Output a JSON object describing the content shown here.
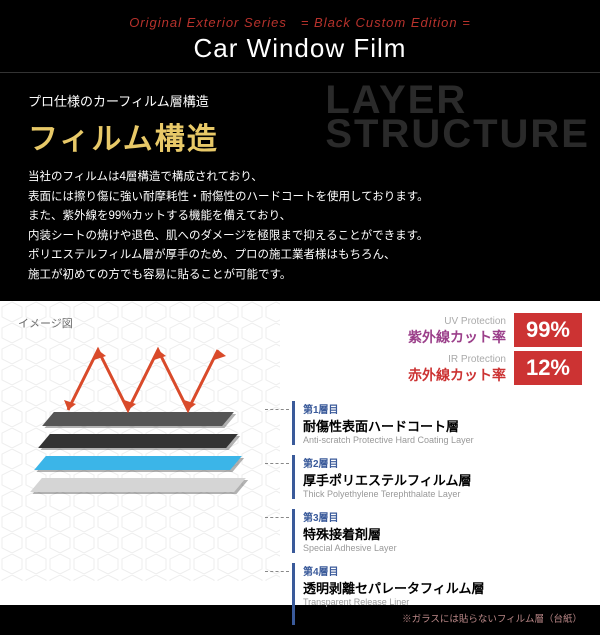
{
  "header": {
    "top": "Original Exterior Series　= Black Custom Edition =",
    "main": "Car Window Film"
  },
  "dark": {
    "subtitle": "プロ仕様のカーフィルム層構造",
    "title": "フィルム構造",
    "bg1": "LAYER",
    "bg2": "STRUCTURE",
    "desc": "当社のフィルムは4層構造で構成されており、\n表面には擦り傷に強い耐摩耗性・耐傷性のハードコートを使用しております。\nまた、紫外線を99%カットする機能を備えており、\n内装シートの焼けや退色、肌へのダメージを極限まで抑えることができます。\nポリエステルフィルム層が厚手のため、プロの施工業者様はもちろん、\n施工が初めての方でも容易に貼ることが可能です。"
  },
  "diagram": {
    "label": "イメージ図",
    "stats": [
      {
        "en": "UV Protection",
        "jp": "紫外線カット率",
        "val": "99%",
        "cls": "uv"
      },
      {
        "en": "IR Protection",
        "jp": "赤外線カット率",
        "val": "12%",
        "cls": "ir"
      }
    ],
    "layers": [
      {
        "num": "第1層目",
        "name": "耐傷性表面ハードコート層",
        "en": "Anti-scratch Protective Hard Coating Layer"
      },
      {
        "num": "第2層目",
        "name": "厚手ポリエステルフィルム層",
        "en": "Thick Polyethylene Terephthalate Layer"
      },
      {
        "num": "第3層目",
        "name": "特殊接着剤層",
        "en": "Special Adhesive Layer"
      },
      {
        "num": "第4層目",
        "name": "透明剥離セパレータフィルム層",
        "en": "Transparent Release Liner"
      }
    ],
    "note": "※ガラスには貼らないフィルム層（台紙）",
    "colors": {
      "l1": "#555",
      "l2": "#333",
      "l3": "#3bb5e8",
      "l4": "#d5d5d5",
      "arrow": "#d94a2a",
      "accent": "#3a5a9a"
    }
  }
}
